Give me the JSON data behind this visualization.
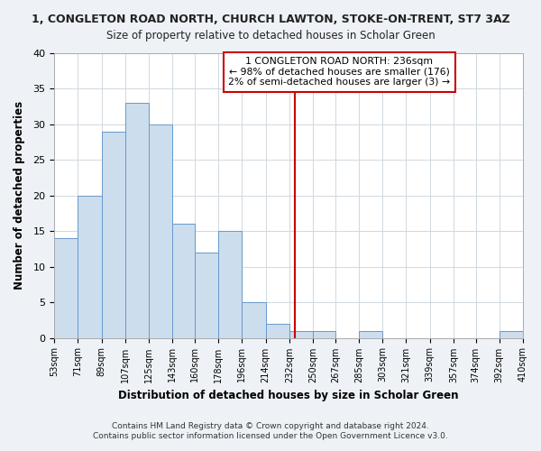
{
  "title": "1, CONGLETON ROAD NORTH, CHURCH LAWTON, STOKE-ON-TRENT, ST7 3AZ",
  "subtitle": "Size of property relative to detached houses in Scholar Green",
  "xlabel": "Distribution of detached houses by size in Scholar Green",
  "ylabel": "Number of detached properties",
  "bar_color": "#ccdded",
  "bar_edge_color": "#6699cc",
  "bin_edges": [
    53,
    71,
    89,
    107,
    125,
    143,
    160,
    178,
    196,
    214,
    232,
    250,
    267,
    285,
    303,
    321,
    339,
    357,
    374,
    392,
    410
  ],
  "bar_heights": [
    14,
    20,
    29,
    33,
    30,
    16,
    12,
    15,
    5,
    2,
    1,
    1,
    0,
    1,
    0,
    0,
    0,
    0,
    0,
    1
  ],
  "tick_labels": [
    "53sqm",
    "71sqm",
    "89sqm",
    "107sqm",
    "125sqm",
    "143sqm",
    "160sqm",
    "178sqm",
    "196sqm",
    "214sqm",
    "232sqm",
    "250sqm",
    "267sqm",
    "285sqm",
    "303sqm",
    "321sqm",
    "339sqm",
    "357sqm",
    "374sqm",
    "392sqm",
    "410sqm"
  ],
  "vline_x": 236,
  "vline_color": "#cc0000",
  "ylim": [
    0,
    40
  ],
  "yticks": [
    0,
    5,
    10,
    15,
    20,
    25,
    30,
    35,
    40
  ],
  "annotation_title": "1 CONGLETON ROAD NORTH: 236sqm",
  "annotation_line1": "← 98% of detached houses are smaller (176)",
  "annotation_line2": "2% of semi-detached houses are larger (3) →",
  "footer1": "Contains HM Land Registry data © Crown copyright and database right 2024.",
  "footer2": "Contains public sector information licensed under the Open Government Licence v3.0.",
  "background_color": "#eef2f7",
  "plot_background_color": "#ffffff",
  "grid_color": "#d0d8e0"
}
